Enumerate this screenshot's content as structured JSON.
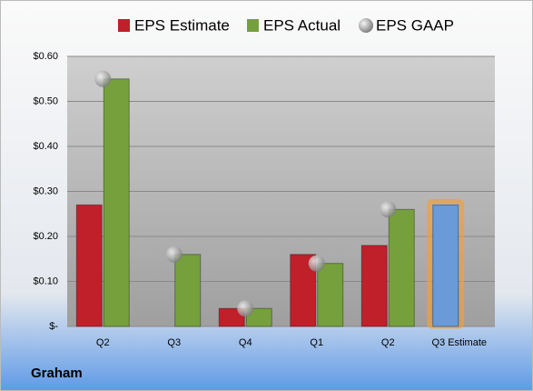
{
  "chart_data": {
    "type": "bar",
    "company": "Graham",
    "categories": [
      "Q2",
      "Q3",
      "Q4",
      "Q1",
      "Q2",
      "Q3 Estimate"
    ],
    "series": [
      {
        "name": "EPS Estimate",
        "color": "#c0202a",
        "values": [
          0.27,
          null,
          0.04,
          0.16,
          0.18,
          0.27
        ],
        "point_colors": [
          "#c0202a",
          "#c0202a",
          "#c0202a",
          "#c0202a",
          "#c0202a",
          "#6a9ad8"
        ],
        "kind": "bar"
      },
      {
        "name": "EPS Actual",
        "color": "#76a03c",
        "values": [
          0.55,
          0.16,
          0.04,
          0.14,
          0.26,
          null
        ],
        "kind": "bar"
      },
      {
        "name": "EPS GAAP",
        "color": "#9a9a9a",
        "values": [
          0.55,
          0.16,
          0.04,
          0.14,
          0.26,
          null
        ],
        "kind": "marker"
      }
    ],
    "ylim": [
      0,
      0.6
    ],
    "yticks": [
      {
        "value": 0,
        "label": "$-"
      },
      {
        "value": 0.1,
        "label": "$0.10"
      },
      {
        "value": 0.2,
        "label": "$0.20"
      },
      {
        "value": 0.3,
        "label": "$0.30"
      },
      {
        "value": 0.4,
        "label": "$0.40"
      },
      {
        "value": 0.5,
        "label": "$0.50"
      },
      {
        "value": 0.6,
        "label": "$0.60"
      }
    ],
    "grid": true
  }
}
